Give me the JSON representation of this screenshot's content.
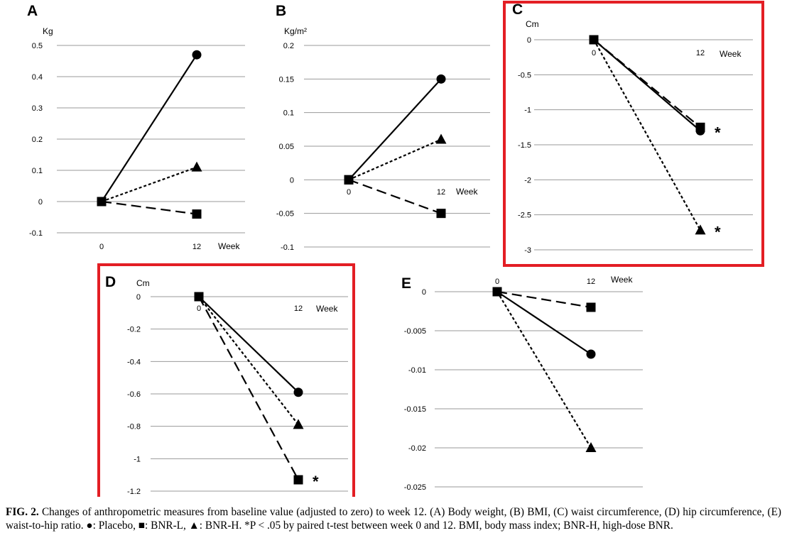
{
  "chart_data": [
    {
      "panel": "A",
      "type": "line",
      "ylabel": "Kg",
      "xlabel": "Week",
      "x_ticks": [
        "0",
        "12"
      ],
      "y_ticks": [
        "0.5",
        "0.4",
        "0.3",
        "0.2",
        "0.1",
        "0",
        "-0.1"
      ],
      "ylim": [
        -0.1,
        0.5
      ],
      "highlighted": false,
      "series": [
        {
          "marker": "circle",
          "line": "solid",
          "values": [
            0,
            0.47
          ],
          "significant": [
            false,
            false
          ]
        },
        {
          "marker": "triangle",
          "line": "dotted",
          "values": [
            0,
            0.11
          ],
          "significant": [
            false,
            false
          ]
        },
        {
          "marker": "square",
          "line": "dashed",
          "values": [
            0,
            -0.04
          ],
          "significant": [
            false,
            false
          ]
        }
      ]
    },
    {
      "panel": "B",
      "type": "line",
      "ylabel": "Kg/m²",
      "xlabel": "Week",
      "x_ticks": [
        "0",
        "12"
      ],
      "y_ticks": [
        "0.2",
        "0.15",
        "0.1",
        "0.05",
        "0",
        "-0.05",
        "-0.1"
      ],
      "ylim": [
        -0.1,
        0.2
      ],
      "highlighted": false,
      "series": [
        {
          "marker": "circle",
          "line": "solid",
          "values": [
            0,
            0.15
          ],
          "significant": [
            false,
            false
          ]
        },
        {
          "marker": "triangle",
          "line": "dotted",
          "values": [
            0,
            0.06
          ],
          "significant": [
            false,
            false
          ]
        },
        {
          "marker": "square",
          "line": "dashed",
          "values": [
            0,
            -0.05
          ],
          "significant": [
            false,
            false
          ]
        }
      ]
    },
    {
      "panel": "C",
      "type": "line",
      "ylabel": "Cm",
      "xlabel": "Week",
      "x_ticks": [
        "0",
        "12"
      ],
      "y_ticks": [
        "0",
        "-0.5",
        "-1",
        "-1.5",
        "-2",
        "-2.5",
        "-3"
      ],
      "ylim": [
        -3,
        0
      ],
      "highlighted": true,
      "series": [
        {
          "marker": "circle",
          "line": "solid",
          "values": [
            0,
            -1.3
          ],
          "significant": [
            false,
            true
          ]
        },
        {
          "marker": "square",
          "line": "dashed",
          "values": [
            0,
            -1.25
          ],
          "significant": [
            false,
            false
          ]
        },
        {
          "marker": "triangle",
          "line": "dotted",
          "values": [
            0,
            -2.72
          ],
          "significant": [
            false,
            true
          ]
        }
      ]
    },
    {
      "panel": "D",
      "type": "line",
      "ylabel": "Cm",
      "xlabel": "Week",
      "x_ticks": [
        "0",
        "12"
      ],
      "y_ticks": [
        "0",
        "-0.2",
        "-0.4",
        "-0.6",
        "-0.8",
        "-1",
        "-1.2"
      ],
      "ylim": [
        -1.2,
        0
      ],
      "highlighted": true,
      "series": [
        {
          "marker": "circle",
          "line": "solid",
          "values": [
            0,
            -0.59
          ],
          "significant": [
            false,
            false
          ]
        },
        {
          "marker": "triangle",
          "line": "dotted",
          "values": [
            0,
            -0.79
          ],
          "significant": [
            false,
            false
          ]
        },
        {
          "marker": "square",
          "line": "dashed",
          "values": [
            0,
            -1.13
          ],
          "significant": [
            false,
            true
          ]
        }
      ]
    },
    {
      "panel": "E",
      "type": "line",
      "ylabel": "",
      "xlabel": "Week",
      "x_ticks": [
        "0",
        "12"
      ],
      "y_ticks": [
        "0",
        "-0.005",
        "-0.01",
        "-0.015",
        "-0.02",
        "-0.025"
      ],
      "ylim": [
        -0.025,
        0
      ],
      "highlighted": false,
      "series": [
        {
          "marker": "square",
          "line": "dashed",
          "values": [
            0,
            -0.002
          ],
          "significant": [
            false,
            false
          ]
        },
        {
          "marker": "circle",
          "line": "solid",
          "values": [
            0,
            -0.008
          ],
          "significant": [
            false,
            false
          ]
        },
        {
          "marker": "triangle",
          "line": "dotted",
          "values": [
            0,
            -0.02
          ],
          "significant": [
            false,
            false
          ]
        }
      ]
    }
  ],
  "significance_mark": "*",
  "colors": {
    "highlight_border": "#e31e24",
    "gridline": "#9a9a9a",
    "ink": "#000000"
  },
  "caption": {
    "fig_label": "FIG. 2.",
    "text": "Changes of anthropometric measures from baseline value (adjusted to zero) to week 12. (A) Body weight, (B) BMI, (C) waist circumference, (D) hip circumference, (E) waist-to-hip ratio. ●: Placebo, ■: BNR-L, ▲: BNR-H. *P < .05 by paired t-test between week 0 and 12. BMI, body mass index; BNR-H, high-dose BNR."
  }
}
